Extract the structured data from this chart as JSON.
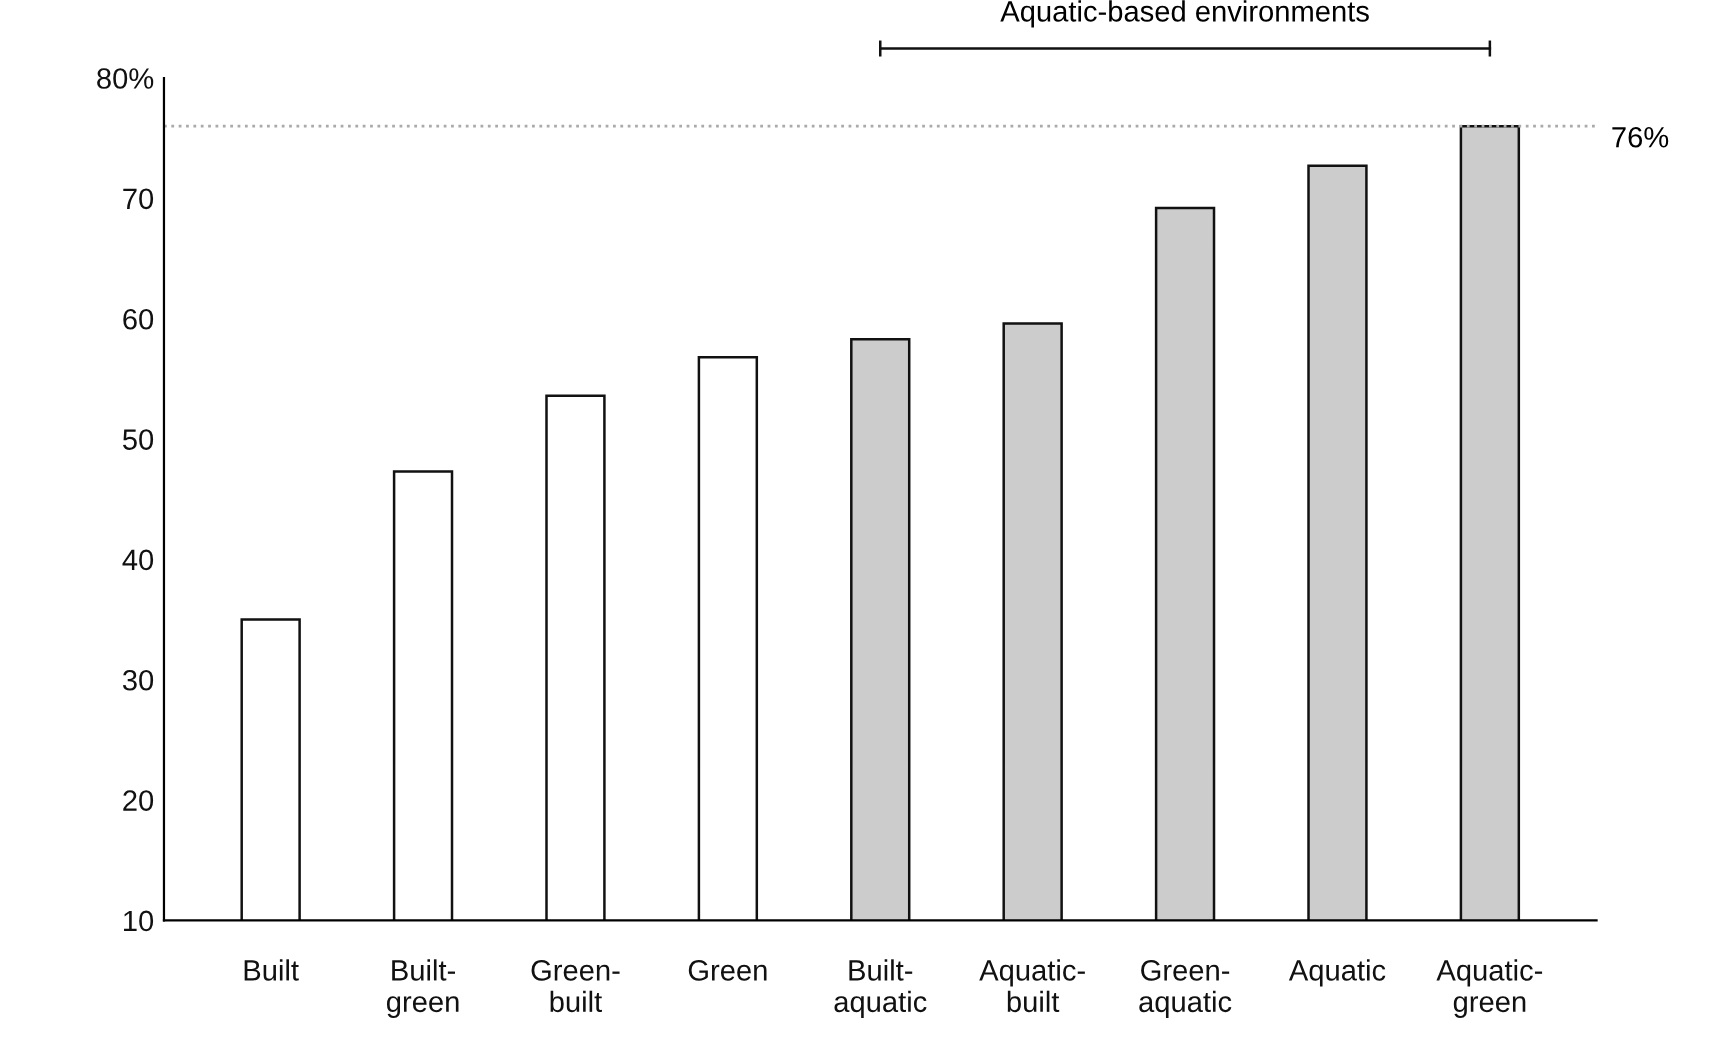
{
  "chart_data": {
    "type": "bar",
    "categories": [
      "Built",
      "Built-\ngreen",
      "Green-\nbuilt",
      "Green",
      "Built-\naquatic",
      "Aquatic-\nbuilt",
      "Green-\naquatic",
      "Aquatic",
      "Aquatic-\ngreen"
    ],
    "values": [
      35.0,
      47.3,
      53.6,
      56.8,
      58.3,
      59.6,
      69.2,
      72.7,
      76
    ],
    "colors": [
      "#ffffff",
      "#ffffff",
      "#ffffff",
      "#ffffff",
      "#cccccc",
      "#cccccc",
      "#cccccc",
      "#cccccc",
      "#cccccc"
    ],
    "ylim": [
      10,
      80
    ],
    "yticks": [
      10,
      20,
      30,
      40,
      50,
      60,
      70,
      {
        "value": 80,
        "label": "80%"
      }
    ],
    "ref_lines": [
      {
        "axis": "y",
        "value": 76,
        "label": "76%",
        "color": "#aaaaaa",
        "line_style": "dotted"
      }
    ],
    "annotations": [
      "Aquatic-based environments"
    ],
    "grid": false
  }
}
